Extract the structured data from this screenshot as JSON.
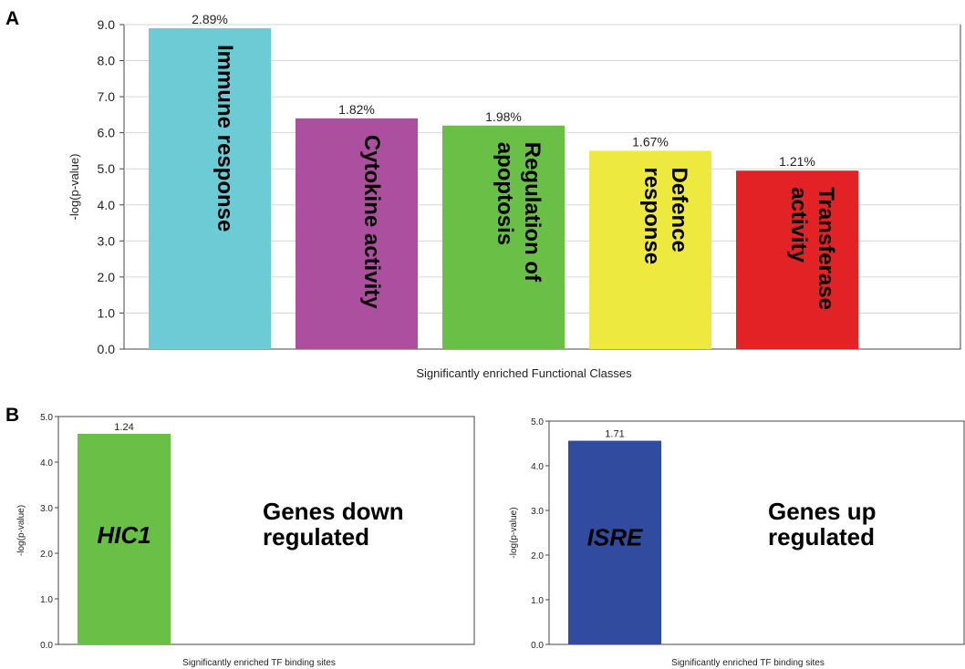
{
  "figure": {
    "panel_a": "A",
    "panel_b": "B"
  },
  "chart_data": [
    {
      "type": "bar",
      "title": "",
      "xlabel": "Significantly enriched Functional Classes",
      "ylabel": "-log(p-value)",
      "ylim": [
        0,
        9
      ],
      "yticks": [
        "0.0",
        "1.0",
        "2.0",
        "3.0",
        "4.0",
        "5.0",
        "6.0",
        "7.0",
        "8.0",
        "9.0"
      ],
      "categories": [
        "Immune response",
        "Cytokine activity",
        "Regulation of apoptosis",
        "Defence response",
        "Transferase activity"
      ],
      "category_lines": [
        [
          "Immune response"
        ],
        [
          "Cytokine activity"
        ],
        [
          "Regulation of",
          "apoptosis"
        ],
        [
          "Defence",
          "response"
        ],
        [
          "Transferase",
          "activity"
        ]
      ],
      "values": [
        8.9,
        6.4,
        6.2,
        5.5,
        4.95
      ],
      "data_labels": [
        "2.89%",
        "1.82%",
        "1.98%",
        "1.67%",
        "1.21%"
      ],
      "colors": [
        "#6ccbd5",
        "#ad4f9f",
        "#6abf46",
        "#ede93e",
        "#e32226"
      ],
      "grid": true
    },
    {
      "type": "bar",
      "title": "",
      "xlabel": "Significantly enriched TF binding sites",
      "ylabel": "-log(p-value)",
      "ylim": [
        0,
        5
      ],
      "yticks": [
        "0.0",
        "1.0",
        "2.0",
        "3.0",
        "4.0",
        "5.0"
      ],
      "categories": [
        "HIC1"
      ],
      "values": [
        4.62
      ],
      "data_labels": [
        "1.24"
      ],
      "colors": [
        "#6abf46"
      ],
      "annotation": [
        "Genes down",
        "regulated"
      ],
      "grid": false
    },
    {
      "type": "bar",
      "title": "",
      "xlabel": "Significantly enriched TF binding sites",
      "ylabel": "-log(p-value)",
      "ylim": [
        0,
        5
      ],
      "yticks": [
        "0.0",
        "1.0",
        "2.0",
        "3.0",
        "4.0",
        "5.0"
      ],
      "categories": [
        "ISRE"
      ],
      "values": [
        4.56
      ],
      "data_labels": [
        "1.71"
      ],
      "colors": [
        "#314c9f"
      ],
      "annotation": [
        "Genes up",
        "regulated"
      ],
      "grid": false
    }
  ]
}
